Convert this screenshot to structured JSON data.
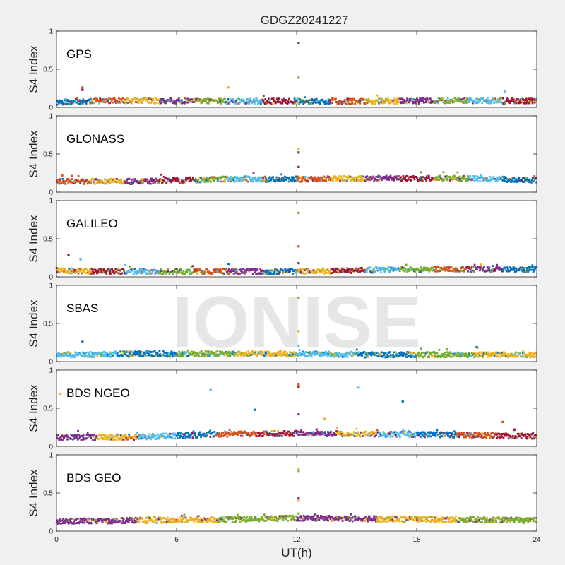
{
  "figure": {
    "title": "GDGZ20241227",
    "xlabel": "UT(h)",
    "watermark": "IONISE",
    "background": "#f0f0f0"
  },
  "chart_data": [
    {
      "type": "scatter",
      "label": "GPS",
      "ylabel": "S4 Index",
      "xlim": [
        0,
        24
      ],
      "ylim": [
        0,
        1
      ],
      "xticks": [
        0,
        6,
        12,
        18,
        24
      ],
      "yticks": [
        0,
        0.5,
        1
      ],
      "ytick_labels": [
        "0",
        "0.5",
        "1"
      ],
      "baseline": {
        "x": [
          0,
          4,
          8,
          12,
          16,
          20,
          24
        ],
        "y": [
          0.07,
          0.09,
          0.08,
          0.08,
          0.08,
          0.09,
          0.08
        ]
      },
      "spikes": [
        {
          "x": 1.3,
          "y": 0.26
        },
        {
          "x": 8.6,
          "y": 0.26
        },
        {
          "x": 12.1,
          "y": 0.84
        },
        {
          "x": 12.1,
          "y": 0.39
        },
        {
          "x": 22.4,
          "y": 0.21
        },
        {
          "x": 1.3,
          "y": 0.23
        }
      ],
      "colors": [
        "#0072bd",
        "#d95319",
        "#edb120",
        "#7e2f8e",
        "#77ac30",
        "#4dbeee",
        "#a2142f"
      ]
    },
    {
      "type": "scatter",
      "label": "GLONASS",
      "ylabel": "S4 Index",
      "xlim": [
        0,
        24
      ],
      "ylim": [
        0,
        1
      ],
      "xticks": [
        0,
        6,
        12,
        18,
        24
      ],
      "yticks": [
        0,
        0.5,
        1
      ],
      "ytick_labels": [
        "0",
        "0.5",
        "1"
      ],
      "baseline": {
        "x": [
          0,
          4,
          8,
          12,
          16,
          20,
          24
        ],
        "y": [
          0.14,
          0.14,
          0.17,
          0.17,
          0.18,
          0.18,
          0.16
        ]
      },
      "spikes": [
        {
          "x": 12.1,
          "y": 0.56
        },
        {
          "x": 12.1,
          "y": 0.52
        },
        {
          "x": 12.1,
          "y": 0.33
        },
        {
          "x": 18.2,
          "y": 0.26
        }
      ],
      "colors": [
        "#d95319",
        "#edb120",
        "#7e2f8e",
        "#a2142f",
        "#77ac30",
        "#4dbeee",
        "#0072bd"
      ]
    },
    {
      "type": "scatter",
      "label": "GALILEO",
      "ylabel": "S4 Index",
      "xlim": [
        0,
        24
      ],
      "ylim": [
        0,
        1
      ],
      "xticks": [
        0,
        6,
        12,
        18,
        24
      ],
      "yticks": [
        0,
        0.5,
        1
      ],
      "ytick_labels": [
        "0",
        "0.5",
        "1"
      ],
      "baseline": {
        "x": [
          0,
          4,
          8,
          12,
          16,
          20,
          24
        ],
        "y": [
          0.08,
          0.07,
          0.07,
          0.07,
          0.09,
          0.1,
          0.1
        ]
      },
      "spikes": [
        {
          "x": 0.6,
          "y": 0.29
        },
        {
          "x": 1.2,
          "y": 0.23
        },
        {
          "x": 12.1,
          "y": 0.84
        },
        {
          "x": 12.1,
          "y": 0.4
        },
        {
          "x": 12.1,
          "y": 0.18
        },
        {
          "x": 8.6,
          "y": 0.17
        },
        {
          "x": 21.2,
          "y": 0.16
        }
      ],
      "colors": [
        "#edb120",
        "#a2142f",
        "#4dbeee",
        "#77ac30",
        "#d95319",
        "#7e2f8e",
        "#0072bd"
      ]
    },
    {
      "type": "scatter",
      "label": "SBAS",
      "ylabel": "S4 Index",
      "xlim": [
        0,
        24
      ],
      "ylim": [
        0,
        1
      ],
      "xticks": [
        0,
        6,
        12,
        18,
        24
      ],
      "yticks": [
        0,
        0.5,
        1
      ],
      "ytick_labels": [
        "0",
        "0.5",
        "1"
      ],
      "baseline": {
        "x": [
          0,
          4,
          8,
          12,
          16,
          20,
          24
        ],
        "y": [
          0.09,
          0.1,
          0.1,
          0.1,
          0.09,
          0.09,
          0.09
        ]
      },
      "spikes": [
        {
          "x": 1.3,
          "y": 0.26
        },
        {
          "x": 12.1,
          "y": 0.83
        },
        {
          "x": 12.1,
          "y": 0.4
        },
        {
          "x": 12.1,
          "y": 0.2
        },
        {
          "x": 21.0,
          "y": 0.19
        },
        {
          "x": 19.5,
          "y": 0.16
        }
      ],
      "colors": [
        "#4dbeee",
        "#0072bd",
        "#77ac30",
        "#edb120"
      ]
    },
    {
      "type": "scatter",
      "label": "BDS NGEO",
      "ylabel": "S4 Index",
      "xlim": [
        0,
        24
      ],
      "ylim": [
        0,
        1
      ],
      "xticks": [
        0,
        6,
        12,
        18,
        24
      ],
      "yticks": [
        0,
        0.5,
        1
      ],
      "ytick_labels": [
        "0",
        "0.5",
        "1"
      ],
      "baseline": {
        "x": [
          0,
          4,
          8,
          12,
          16,
          20,
          24
        ],
        "y": [
          0.12,
          0.12,
          0.16,
          0.17,
          0.16,
          0.15,
          0.13
        ]
      },
      "spikes": [
        {
          "x": 0.2,
          "y": 0.69
        },
        {
          "x": 7.7,
          "y": 0.74
        },
        {
          "x": 9.9,
          "y": 0.48
        },
        {
          "x": 12.1,
          "y": 0.81
        },
        {
          "x": 12.1,
          "y": 0.78
        },
        {
          "x": 12.1,
          "y": 0.42
        },
        {
          "x": 13.4,
          "y": 0.36
        },
        {
          "x": 15.1,
          "y": 0.77
        },
        {
          "x": 17.3,
          "y": 0.59
        },
        {
          "x": 22.3,
          "y": 0.32
        },
        {
          "x": 22.9,
          "y": 0.22
        },
        {
          "x": 13.0,
          "y": 0.22
        }
      ],
      "colors": [
        "#7e2f8e",
        "#edb120",
        "#4dbeee",
        "#0072bd",
        "#d95319",
        "#a2142f"
      ]
    },
    {
      "type": "scatter",
      "label": "BDS GEO",
      "ylabel": "S4 Index",
      "xlim": [
        0,
        24
      ],
      "ylim": [
        0,
        1
      ],
      "xticks": [
        0,
        6,
        12,
        18,
        24
      ],
      "yticks": [
        0,
        0.5,
        1
      ],
      "ytick_labels": [
        "0",
        "0.5",
        "1"
      ],
      "baseline": {
        "x": [
          0,
          4,
          8,
          12,
          16,
          20,
          24
        ],
        "y": [
          0.13,
          0.14,
          0.15,
          0.17,
          0.16,
          0.15,
          0.14
        ]
      },
      "spikes": [
        {
          "x": 12.1,
          "y": 0.81
        },
        {
          "x": 12.1,
          "y": 0.78
        },
        {
          "x": 12.1,
          "y": 0.43
        },
        {
          "x": 12.1,
          "y": 0.4
        },
        {
          "x": 12.1,
          "y": 0.23
        }
      ],
      "colors": [
        "#7e2f8e",
        "#edb120",
        "#77ac30"
      ]
    }
  ]
}
